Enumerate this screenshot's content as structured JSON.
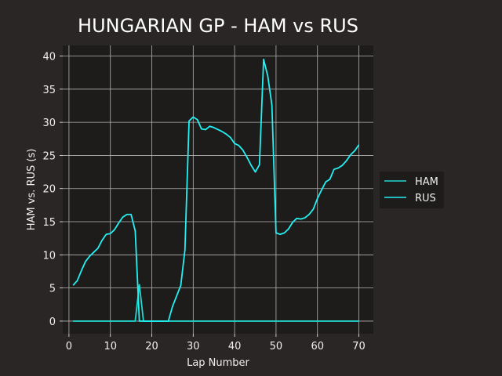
{
  "chart_data": {
    "type": "line",
    "title": "HUNGARIAN GP - HAM vs RUS",
    "xlabel": "Lap Number",
    "ylabel": "HAM vs. RUS (s)",
    "xlim": [
      -1.5,
      73.5
    ],
    "ylim": [
      -1.9,
      41.6
    ],
    "xticks": [
      0,
      10,
      20,
      30,
      40,
      50,
      60,
      70
    ],
    "yticks": [
      0,
      5,
      10,
      15,
      20,
      25,
      30,
      35,
      40
    ],
    "grid": true,
    "legend_position": "center-right",
    "colors": {
      "background": "#292625",
      "plot_background": "#1e1c1b",
      "grid": "#b3b3b3",
      "text": "#f0f0f0",
      "legend_background": "#1e1c1b"
    },
    "series": [
      {
        "name": "HAM",
        "color": "#20d8d0",
        "x": [
          1,
          2,
          3,
          4,
          5,
          6,
          7,
          8,
          9,
          10,
          11,
          12,
          13,
          14,
          15,
          16,
          17,
          18,
          19,
          20,
          21,
          22,
          23,
          24,
          25,
          26,
          27,
          28,
          29,
          30,
          31,
          32,
          33,
          34,
          35,
          36,
          37,
          38,
          39,
          40,
          41,
          42,
          43,
          44,
          45,
          46,
          47,
          48,
          49,
          50,
          51,
          52,
          53,
          54,
          55,
          56,
          57,
          58,
          59,
          60,
          61,
          62,
          63,
          64,
          65,
          66,
          67,
          68,
          69,
          70
        ],
        "y": [
          0,
          0,
          0,
          0,
          0,
          0,
          0,
          0,
          0,
          0,
          0,
          0,
          0,
          0,
          0,
          0,
          5.5,
          0,
          0,
          0,
          0,
          0,
          0,
          0,
          0,
          0,
          0,
          0,
          0,
          0,
          0,
          0,
          0,
          0,
          0,
          0,
          0,
          0,
          0,
          0,
          0,
          0,
          0,
          0,
          0,
          0,
          0,
          0,
          0,
          0,
          0,
          0,
          0,
          0,
          0,
          0,
          0,
          0,
          0,
          0,
          0,
          0,
          0,
          0,
          0,
          0,
          0,
          0,
          0,
          0
        ]
      },
      {
        "name": "RUS",
        "color": "#23f0f3",
        "x": [
          1,
          2,
          3,
          4,
          5,
          6,
          7,
          8,
          9,
          10,
          11,
          12,
          13,
          14,
          15,
          16,
          17,
          18,
          19,
          20,
          21,
          22,
          23,
          24,
          25,
          26,
          27,
          28,
          29,
          30,
          31,
          32,
          33,
          34,
          35,
          36,
          37,
          38,
          39,
          40,
          41,
          42,
          43,
          44,
          45,
          46,
          47,
          48,
          49,
          50,
          51,
          52,
          53,
          54,
          55,
          56,
          57,
          58,
          59,
          60,
          61,
          62,
          63,
          64,
          65,
          66,
          67,
          68,
          69,
          70
        ],
        "y": [
          5.4,
          6.1,
          7.6,
          9.0,
          9.8,
          10.4,
          11.0,
          12.2,
          13.1,
          13.2,
          13.8,
          14.8,
          15.7,
          16.1,
          16.1,
          13.6,
          0,
          0,
          0,
          0,
          0,
          0,
          0,
          0,
          2.2,
          3.8,
          5.4,
          10.7,
          30.2,
          30.8,
          30.4,
          29.0,
          28.9,
          29.4,
          29.2,
          28.9,
          28.6,
          28.2,
          27.7,
          26.8,
          26.5,
          25.8,
          24.7,
          23.5,
          22.5,
          23.6,
          39.5,
          37.0,
          32.6,
          13.3,
          13.1,
          13.3,
          13.9,
          14.9,
          15.5,
          15.4,
          15.6,
          16.1,
          16.9,
          18.5,
          19.8,
          21.0,
          21.4,
          22.9,
          23.1,
          23.5,
          24.2,
          25.1,
          25.7,
          26.6
        ]
      }
    ]
  }
}
